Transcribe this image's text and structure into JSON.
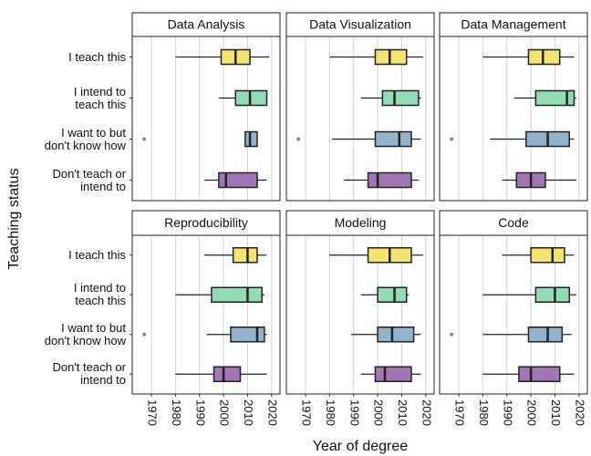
{
  "chart_data": {
    "type": "box",
    "xlabel": "Year of degree",
    "ylabel": "Teaching status",
    "categories": [
      "I teach this",
      "I intend to\nteach this",
      "I want to but\ndon't know how",
      "Don't teach or\nintend to"
    ],
    "colors": [
      "#f3e370",
      "#93dbb8",
      "#93b3cd",
      "#a077b4"
    ],
    "xlim": [
      1962,
      2023.5
    ],
    "xticks": [
      1970,
      1980,
      1990,
      2000,
      2010,
      2020
    ],
    "grid": true,
    "facets": [
      {
        "title": "Data Analysis",
        "boxes": [
          {
            "low": 1980,
            "q1": 1999,
            "median": 2005,
            "q3": 2011,
            "high": 2019,
            "outliers": []
          },
          {
            "low": 1998,
            "q1": 2005,
            "median": 2011,
            "q3": 2018,
            "high": 2018,
            "outliers": []
          },
          {
            "low": 2009,
            "q1": 2009,
            "median": 2011,
            "q3": 2014,
            "high": 2014,
            "outliers": [
              1967
            ]
          },
          {
            "low": 1992,
            "q1": 1998,
            "median": 2001,
            "q3": 2014,
            "high": 2018,
            "outliers": []
          }
        ]
      },
      {
        "title": "Data Visualization",
        "boxes": [
          {
            "low": 1980,
            "q1": 1999,
            "median": 2005,
            "q3": 2012,
            "high": 2019,
            "outliers": []
          },
          {
            "low": 1993,
            "q1": 2002,
            "median": 2007,
            "q3": 2017,
            "high": 2018,
            "outliers": []
          },
          {
            "low": 1981,
            "q1": 1999,
            "median": 2009,
            "q3": 2014,
            "high": 2018,
            "outliers": [
              1967
            ]
          },
          {
            "low": 1986,
            "q1": 1996,
            "median": 2000,
            "q3": 2014,
            "high": 2017,
            "outliers": []
          }
        ]
      },
      {
        "title": "Data Management",
        "boxes": [
          {
            "low": 1980,
            "q1": 1999,
            "median": 2005,
            "q3": 2012,
            "high": 2018,
            "outliers": []
          },
          {
            "low": 1993,
            "q1": 2002,
            "median": 2015,
            "q3": 2018,
            "high": 2019,
            "outliers": []
          },
          {
            "low": 1983,
            "q1": 1998,
            "median": 2007,
            "q3": 2016,
            "high": 2018,
            "outliers": [
              1967
            ]
          },
          {
            "low": 1988,
            "q1": 1994,
            "median": 2000,
            "q3": 2006,
            "high": 2019,
            "outliers": []
          }
        ]
      },
      {
        "title": "Reproducibility",
        "boxes": [
          {
            "low": 1992,
            "q1": 2004,
            "median": 2010,
            "q3": 2014,
            "high": 2018,
            "outliers": []
          },
          {
            "low": 1980,
            "q1": 1995,
            "median": 2010,
            "q3": 2016,
            "high": 2017,
            "outliers": []
          },
          {
            "low": 1993,
            "q1": 2003,
            "median": 2014,
            "q3": 2017,
            "high": 2018,
            "outliers": [
              1967
            ]
          },
          {
            "low": 1980,
            "q1": 1996,
            "median": 2000,
            "q3": 2007,
            "high": 2018,
            "outliers": []
          }
        ]
      },
      {
        "title": "Modeling",
        "boxes": [
          {
            "low": 1980,
            "q1": 1996,
            "median": 2005,
            "q3": 2014,
            "high": 2019,
            "outliers": []
          },
          {
            "low": 1993,
            "q1": 2000,
            "median": 2007,
            "q3": 2012,
            "high": 2013,
            "outliers": []
          },
          {
            "low": 1989,
            "q1": 2000,
            "median": 2006,
            "q3": 2015,
            "high": 2018,
            "outliers": []
          },
          {
            "low": 1993,
            "q1": 1999,
            "median": 2003,
            "q3": 2014,
            "high": 2018,
            "outliers": []
          }
        ]
      },
      {
        "title": "Code",
        "boxes": [
          {
            "low": 1988,
            "q1": 2000,
            "median": 2009,
            "q3": 2014,
            "high": 2018,
            "outliers": []
          },
          {
            "low": 1980,
            "q1": 2002,
            "median": 2010,
            "q3": 2016,
            "high": 2019,
            "outliers": []
          },
          {
            "low": 1980,
            "q1": 1999,
            "median": 2007,
            "q3": 2013,
            "high": 2017,
            "outliers": [
              1967
            ]
          },
          {
            "low": 1980,
            "q1": 1995,
            "median": 2000,
            "q3": 2012,
            "high": 2018,
            "outliers": []
          }
        ]
      }
    ]
  }
}
